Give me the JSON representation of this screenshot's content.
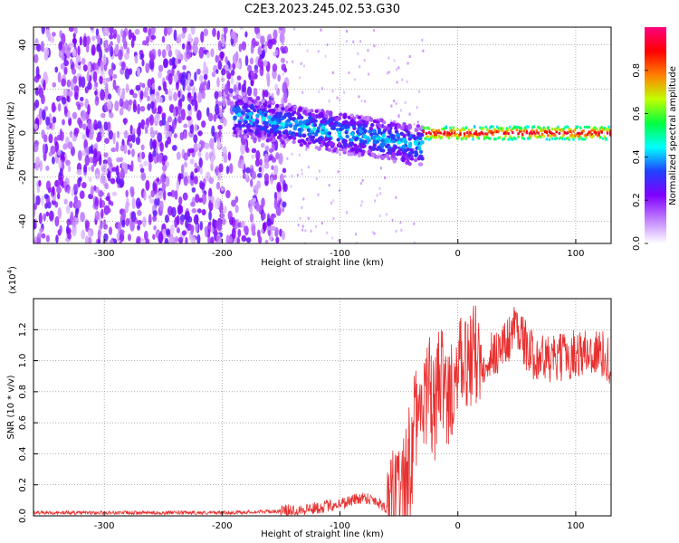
{
  "title": "C2E3.2023.245.02.53.G30",
  "chart_data": [
    {
      "type": "heatmap",
      "xlabel": "Height of straight line (km)",
      "ylabel": "Frequency (Hz)",
      "xlim": [
        -360,
        130
      ],
      "ylim": [
        -50,
        48
      ],
      "xticks": [
        -300,
        -200,
        -100,
        0,
        100
      ],
      "yticks": [
        -40,
        -20,
        0,
        20,
        40
      ],
      "colorbar": {
        "label": "Normalized spectral amplitude",
        "range": [
          0,
          1
        ],
        "ticks": [
          "0.0",
          "0.2",
          "0.4",
          "0.6",
          "0.8"
        ],
        "colors": [
          "#ffffff",
          "#c080ff",
          "#8000ff",
          "#2040ff",
          "#00ffff",
          "#00ff40",
          "#c0ff00",
          "#ff8000",
          "#ff0000",
          "#ff0080"
        ]
      },
      "grid": true,
      "regions": [
        {
          "x": [
            -360,
            -150
          ],
          "freq": [
            -50,
            48
          ],
          "amplitude": [
            0.0,
            0.15
          ],
          "description_level": "noise"
        },
        {
          "x": [
            -190,
            -30
          ],
          "freq": [
            -12,
            14
          ],
          "amplitude": [
            0.1,
            0.45
          ],
          "center_freq": "descending 8 to -8"
        },
        {
          "x": [
            -30,
            130
          ],
          "freq": [
            -3,
            3
          ],
          "amplitude": [
            0.5,
            1.0
          ],
          "center_freq": 0
        }
      ]
    },
    {
      "type": "line",
      "xlabel": "Height of straight line (km)",
      "ylabel": "SNR (10 * v/v)",
      "scale_label": "(x10",
      "scale_exp": "4",
      "scale_close": ")",
      "xlim": [
        -360,
        130
      ],
      "ylim": [
        0,
        1.4
      ],
      "xticks": [
        -300,
        -200,
        -100,
        0,
        100
      ],
      "yticks": [
        "0.0",
        "0.2",
        "0.4",
        "0.6",
        "0.8",
        "1.0",
        "1.2"
      ],
      "grid": true,
      "color": "#e83030",
      "series": [
        {
          "x": [
            -360,
            -300,
            -250,
            -200,
            -150,
            -120,
            -100,
            -80,
            -70,
            -60,
            -50,
            -40,
            -35,
            -30,
            -25,
            -20,
            -15,
            -10,
            -5,
            0,
            5,
            10,
            20,
            30,
            40,
            50,
            60,
            80,
            100,
            120,
            130
          ],
          "values": [
            0.02,
            0.02,
            0.02,
            0.02,
            0.03,
            0.05,
            0.08,
            0.12,
            0.1,
            0.05,
            0.12,
            0.3,
            0.65,
            0.55,
            0.9,
            0.6,
            0.95,
            0.7,
            0.85,
            0.9,
            0.95,
            1.05,
            1.0,
            1.05,
            1.1,
            1.25,
            1.05,
            1.0,
            1.05,
            1.05,
            1.0
          ]
        }
      ]
    }
  ]
}
